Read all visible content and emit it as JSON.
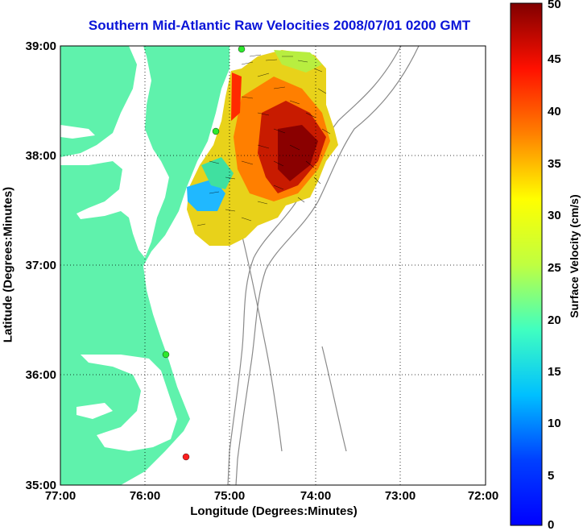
{
  "title": "Southern Mid-Atlantic Raw Velocities 2008/07/01 0200 GMT",
  "xlabel": "Longitude (Degrees:Minutes)",
  "ylabel": "Latitude (Degrees:Minutes)",
  "x_ticks": [
    "77:00",
    "76:00",
    "75:00",
    "74:00",
    "73:00",
    "72:00"
  ],
  "y_ticks": [
    "39:00",
    "38:00",
    "37:00",
    "36:00",
    "35:00"
  ],
  "colorbar": {
    "label": "Surface Velocity (cm/s)",
    "ticks": [
      "50",
      "45",
      "40",
      "35",
      "30",
      "25",
      "20",
      "15",
      "10",
      "5",
      "0"
    ],
    "range": [
      0,
      50
    ]
  },
  "colors": {
    "land": "#5ff2ac",
    "title": "#0a14d8",
    "bathymetry": "#8a8a8a"
  },
  "station_markers": [
    {
      "name": "north-station",
      "color": "#2ee82e"
    },
    {
      "name": "mid-station",
      "color": "#2ee82e"
    },
    {
      "name": "south-station",
      "color": "#2ee82e"
    },
    {
      "name": "hatteras-station",
      "color": "#ff2020"
    }
  ]
}
